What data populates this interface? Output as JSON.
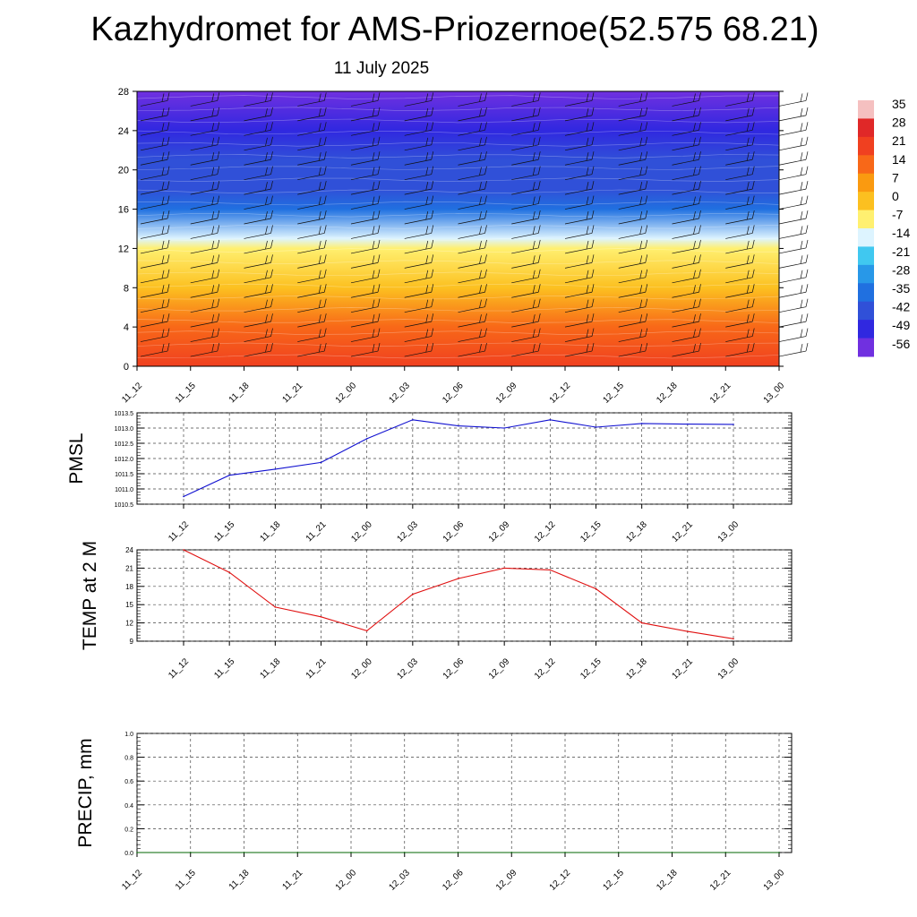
{
  "title": "Kazhydromet for AMS-Priozernoe(52.575 68.21)",
  "date": "11 July 2025",
  "colors": {
    "pmsl_line": "#1010d0",
    "temp_line": "#e01010",
    "precip_line": "#006400",
    "grid": "#444444"
  },
  "chart_data": [
    {
      "type": "heatmap",
      "title": "",
      "x_ticks": [
        "11_12",
        "11_15",
        "11_18",
        "11_21",
        "12_00",
        "12_03",
        "12_06",
        "12_09",
        "12_12",
        "12_15",
        "12_18",
        "12_21",
        "13_00"
      ],
      "y_ticks": [
        0,
        4,
        8,
        12,
        16,
        20,
        24,
        28
      ],
      "ylim": [
        0,
        28
      ],
      "colorbar_labels": [
        "35",
        "28",
        "21",
        "14",
        "7",
        "0",
        "-7",
        "-14",
        "-21",
        "-28",
        "-35",
        "-42",
        "-49",
        "-56"
      ],
      "colorbar_colors": [
        "#f5c0c0",
        "#e02828",
        "#f04020",
        "#f86818",
        "#fa9a10",
        "#fcc020",
        "#fff070",
        "#ddf4ff",
        "#40c8f0",
        "#2898e8",
        "#2070e0",
        "#3050d8",
        "#3028e0",
        "#7030e0"
      ],
      "rows": [
        {
          "level": 0,
          "value": 22
        },
        {
          "level": 4,
          "value": 14
        },
        {
          "level": 8,
          "value": 3
        },
        {
          "level": 12,
          "value": -6
        },
        {
          "level": 13,
          "value": -14
        },
        {
          "level": 16,
          "value": -35
        },
        {
          "level": 18,
          "value": -42
        },
        {
          "level": 21,
          "value": -45
        },
        {
          "level": 24,
          "value": -50
        },
        {
          "level": 28,
          "value": -58
        }
      ]
    },
    {
      "type": "line",
      "ylabel": "PMSL",
      "categories": [
        "11_12",
        "11_15",
        "11_18",
        "11_21",
        "12_00",
        "12_03",
        "12_06",
        "12_09",
        "12_12",
        "12_15",
        "12_18",
        "12_21",
        "13_00"
      ],
      "y_ticks": [
        "1010.5",
        "1011.0",
        "1011.5",
        "1012.0",
        "1012.5",
        "1013.0",
        "1013.5"
      ],
      "ylim": [
        1010.5,
        1013.5
      ],
      "values": [
        1010.75,
        1011.45,
        1011.65,
        1011.87,
        1012.65,
        1013.27,
        1013.07,
        1013.0,
        1013.27,
        1013.03,
        1013.15,
        1013.13,
        1013.12
      ],
      "grid": true
    },
    {
      "type": "line",
      "ylabel": "TEMP at 2 M",
      "categories": [
        "11_12",
        "11_15",
        "11_18",
        "11_21",
        "12_00",
        "12_03",
        "12_06",
        "12_09",
        "12_12",
        "12_15",
        "12_18",
        "12_21",
        "13_00"
      ],
      "y_ticks": [
        "9",
        "12",
        "15",
        "18",
        "21",
        "24"
      ],
      "ylim": [
        9,
        24
      ],
      "values": [
        24.0,
        20.3,
        14.6,
        13.0,
        10.7,
        16.7,
        19.3,
        21.0,
        20.7,
        17.6,
        12.0,
        10.6,
        9.4
      ],
      "grid": true
    },
    {
      "type": "line",
      "ylabel": "PRECIP, mm",
      "categories": [
        "11_12",
        "11_15",
        "11_18",
        "11_21",
        "12_00",
        "12_03",
        "12_06",
        "12_09",
        "12_12",
        "12_15",
        "12_18",
        "12_21",
        "13_00"
      ],
      "y_ticks": [
        "0.0",
        "0.2",
        "0.4",
        "0.6",
        "0.8",
        "1.0"
      ],
      "ylim": [
        0,
        1
      ],
      "values": [
        0,
        0,
        0,
        0,
        0,
        0,
        0,
        0,
        0,
        0,
        0,
        0,
        0
      ],
      "grid": true
    }
  ]
}
